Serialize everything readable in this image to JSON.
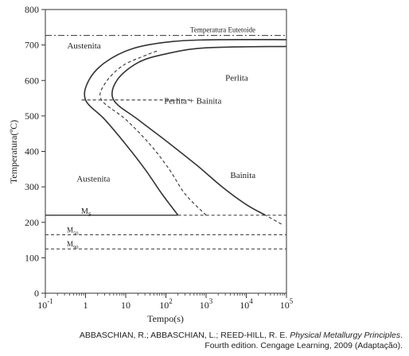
{
  "chart_data": {
    "type": "line",
    "title": "",
    "xlabel": "Tempo(s)",
    "ylabel": "Temperatura(ºC)",
    "xscale": "log",
    "xlim": [
      0.1,
      100000
    ],
    "ylim": [
      0,
      800
    ],
    "x_ticks": [
      {
        "value": 0.1,
        "base": "10",
        "exp": "-1"
      },
      {
        "value": 1,
        "base": "1",
        "exp": ""
      },
      {
        "value": 10,
        "base": "10",
        "exp": ""
      },
      {
        "value": 100,
        "base": "10",
        "exp": "2"
      },
      {
        "value": 1000,
        "base": "10",
        "exp": "3"
      },
      {
        "value": 10000,
        "base": "10",
        "exp": "4"
      },
      {
        "value": 100000,
        "base": "10",
        "exp": "5"
      }
    ],
    "y_ticks": [
      "0",
      "100",
      "200",
      "300",
      "400",
      "500",
      "600",
      "700",
      "800"
    ],
    "reference_lines": [
      {
        "label": "Temperatura Eutetoide",
        "y": 727,
        "style": "dashdot"
      },
      {
        "label": "M",
        "sub": "S",
        "y": 220,
        "style": "solid-then-dashed",
        "solid_until": 200
      },
      {
        "label": "M",
        "sub": "50",
        "y": 165,
        "style": "dashed"
      },
      {
        "label": "M",
        "sub": "90",
        "y": 125,
        "style": "dashed"
      }
    ],
    "series": [
      {
        "style": "solid",
        "points": [
          [
            200,
            220
          ],
          [
            80,
            280
          ],
          [
            30,
            350
          ],
          [
            10,
            420
          ],
          [
            3,
            490
          ],
          [
            1,
            545
          ],
          [
            1.2,
            600
          ],
          [
            3,
            650
          ],
          [
            15,
            690
          ],
          [
            150,
            710
          ],
          [
            2000,
            715
          ],
          [
            100000,
            715
          ]
        ]
      },
      {
        "style": "dashed",
        "points": [
          [
            1000,
            220
          ],
          [
            300,
            280
          ],
          [
            120,
            350
          ],
          [
            40,
            420
          ],
          [
            10,
            490
          ],
          [
            2.5,
            545
          ],
          [
            3,
            590
          ],
          [
            8,
            640
          ],
          [
            30,
            670
          ],
          [
            60,
            683
          ]
        ]
      },
      {
        "style": "solid",
        "points": [
          [
            30000,
            220
          ],
          [
            10000,
            250
          ],
          [
            2500,
            300
          ],
          [
            600,
            360
          ],
          [
            100,
            430
          ],
          [
            20,
            490
          ],
          [
            5,
            545
          ],
          [
            6,
            600
          ],
          [
            20,
            650
          ],
          [
            100,
            675
          ],
          [
            1000,
            692
          ],
          [
            100000,
            696
          ]
        ]
      },
      {
        "style": "dashed",
        "points": [
          [
            75000,
            195
          ],
          [
            30000,
            220
          ]
        ]
      },
      {
        "style": "dashed",
        "points": [
          [
            0.8,
            545
          ],
          [
            400,
            545
          ]
        ]
      }
    ],
    "annotations": [
      {
        "text": "Austenita",
        "x": 0.35,
        "y": 690
      },
      {
        "text": "Perlita",
        "x": 3000,
        "y": 600
      },
      {
        "text": "Perlita + Bainita",
        "x": 90,
        "y": 535
      },
      {
        "text": "Austenita",
        "x": 0.6,
        "y": 315
      },
      {
        "text": "Bainita",
        "x": 4000,
        "y": 325
      }
    ]
  },
  "caption": {
    "line1_prefix": "ABBASCHIAN, R.; ABBASCHIAN, L.; REED-HILL, R. E. ",
    "line1_title": "Physical Metallurgy Principles",
    "line1_suffix": ".",
    "line2": "Fourth edition. Cengage Learning, 2009 (Adaptação)."
  }
}
